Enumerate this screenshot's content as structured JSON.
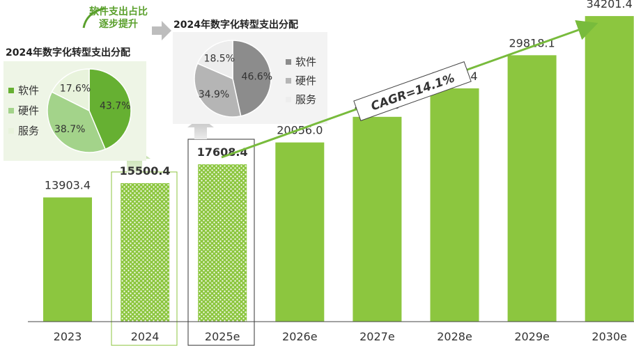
{
  "colors": {
    "bar": "#8cc63f",
    "pie2024_software": "#66b032",
    "pie2024_hardware": "#a3d38a",
    "pie2024_service": "#e8f3dc",
    "pie2025_software": "#8c8c8c",
    "pie2025_hardware": "#b5b5b5",
    "pie2025_service": "#ededed",
    "cagr_arrow": "#78bb3c",
    "callout_text": "#5aa02c"
  },
  "chart_data": [
    {
      "type": "bar",
      "categories": [
        "2023",
        "2024",
        "2025e",
        "2026e",
        "2027e",
        "2028e",
        "2029e",
        "2030e"
      ],
      "values": [
        13903.4,
        15500.4,
        17608.4,
        20056.0,
        22924.0,
        26110.4,
        29818.1,
        34201.4
      ],
      "value_labels": [
        "13903.4",
        "15500.4",
        "17608.4",
        "20056.0",
        "22924.0",
        "26110.4",
        "29818.1",
        "34201.4"
      ],
      "highlighted": [
        "2024",
        "2025e"
      ],
      "ylim": [
        0,
        36000
      ],
      "grid": false,
      "annotation": "CAGR=14.1%"
    },
    {
      "type": "pie",
      "title": "2024年数字化转型支出分配",
      "labels": [
        "软件",
        "硬件",
        "服务"
      ],
      "values": [
        43.7,
        38.7,
        17.6
      ],
      "value_labels": [
        "43.7%",
        "38.7%",
        "17.6%"
      ],
      "legend_position": "left"
    },
    {
      "type": "pie",
      "title": "2024年数字化转型支出分配",
      "labels": [
        "软件",
        "硬件",
        "服务"
      ],
      "values": [
        46.6,
        34.9,
        18.5
      ],
      "value_labels": [
        "46.6%",
        "34.9%",
        "18.5%"
      ],
      "legend_position": "right"
    }
  ],
  "callout": {
    "line1": "软件支出占比",
    "line2": "逐步提升"
  }
}
